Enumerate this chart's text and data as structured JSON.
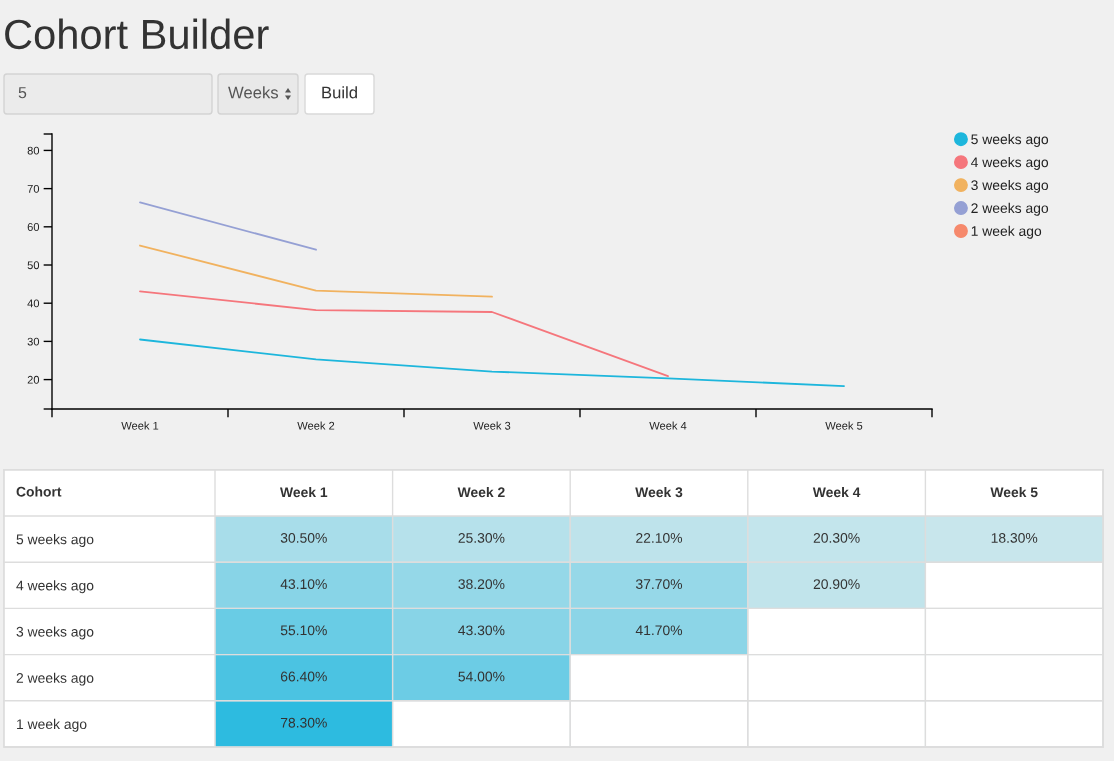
{
  "chart_data": [
    {
      "type": "other",
      "title": "Cohort Builder",
      "annotations": [
        "5",
        "Weeks",
        "Build"
      ]
    },
    {
      "type": "line",
      "categories": [
        "Week 1",
        "Week 2",
        "Week 3",
        "Week 4",
        "Week 5"
      ],
      "series": [
        {
          "name": "5 weeks ago",
          "color": "#1db6dc",
          "values": [
            30.5,
            25.3,
            22.1,
            20.3,
            18.3
          ]
        },
        {
          "name": "4 weeks ago",
          "color": "#f5767c",
          "values": [
            43.1,
            38.2,
            37.7,
            20.9,
            null
          ]
        },
        {
          "name": "3 weeks ago",
          "color": "#f1b25f",
          "values": [
            55.1,
            43.3,
            41.7,
            null,
            null
          ]
        },
        {
          "name": "2 weeks ago",
          "color": "#95a0d4",
          "values": [
            66.4,
            54.0,
            null,
            null,
            null
          ]
        },
        {
          "name": "1 week ago",
          "color": "#f6896c",
          "values": [
            null,
            null,
            null,
            null,
            null
          ]
        }
      ],
      "ylim": [
        12.3,
        84.3
      ],
      "yticks": [
        {
          "value": 12.3,
          "label": null
        },
        20,
        30,
        40,
        50,
        60,
        70,
        80,
        {
          "value": 84.3,
          "label": null
        }
      ],
      "legend": "top right"
    },
    {
      "type": "heatmap",
      "ylabel": "Cohort",
      "categories": [
        "Week 1",
        "Week 2",
        "Week 3",
        "Week 4",
        "Week 5"
      ],
      "y_categories": [
        "5 weeks ago",
        "4 weeks ago",
        "3 weeks ago",
        "2 weeks ago",
        "1 week ago"
      ],
      "cells": [
        [
          30.5,
          25.3,
          22.1,
          20.3,
          18.3
        ],
        [
          43.1,
          38.2,
          37.7,
          20.9,
          null
        ],
        [
          55.1,
          43.3,
          41.7,
          null,
          null
        ],
        [
          66.4,
          54.0,
          null,
          null,
          null
        ],
        [
          78.3,
          null,
          null,
          null,
          null
        ]
      ],
      "cell_labels": [
        [
          "30.50%",
          "25.30%",
          "22.10%",
          "20.30%",
          "18.30%"
        ],
        [
          "43.10%",
          "38.20%",
          "37.70%",
          "20.90%",
          null
        ],
        [
          "55.10%",
          "43.30%",
          "41.70%",
          null,
          null
        ],
        [
          "66.40%",
          "54.00%",
          null,
          null,
          null
        ],
        [
          "78.30%",
          null,
          null,
          null,
          null
        ]
      ]
    }
  ]
}
